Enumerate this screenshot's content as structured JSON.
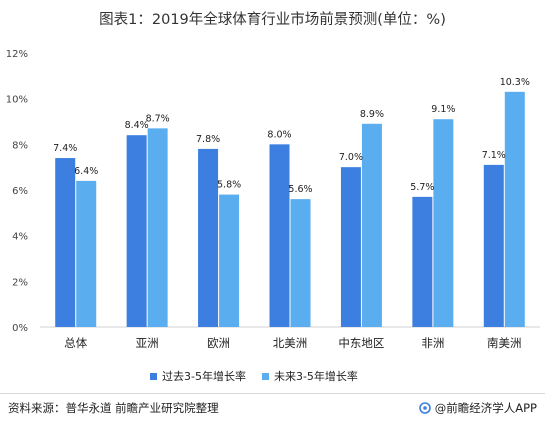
{
  "title": "图表1：2019年全球体育行业市场前景预测(单位：%)",
  "footer": {
    "source": "资料来源：普华永道 前瞻产业研究院整理",
    "brand": "@前瞻经济学人APP"
  },
  "colors": {
    "past": "#3d7fe0",
    "future": "#5aaef0"
  },
  "chart_data": {
    "type": "bar",
    "categories": [
      "总体",
      "亚洲",
      "欧洲",
      "北美洲",
      "中东地区",
      "非洲",
      "南美洲"
    ],
    "series": [
      {
        "name": "过去3-5年增长率",
        "values": [
          7.4,
          8.4,
          7.8,
          8.0,
          7.0,
          5.7,
          7.1
        ],
        "labels": [
          "7.4%",
          "8.4%",
          "7.8%",
          "8.0%",
          "7.0%",
          "5.7%",
          "7.1%"
        ]
      },
      {
        "name": "未来3-5年增长率",
        "values": [
          6.4,
          8.7,
          5.8,
          5.6,
          8.9,
          9.1,
          10.3
        ],
        "labels": [
          "6.4%",
          "8.7%",
          "5.8%",
          "5.6%",
          "8.9%",
          "9.1%",
          "10.3%"
        ]
      }
    ],
    "ylim": [
      0,
      12
    ],
    "yticks": [
      0,
      2,
      4,
      6,
      8,
      10,
      12
    ],
    "ytick_labels": [
      "0%",
      "2%",
      "4%",
      "6%",
      "8%",
      "10%",
      "12%"
    ],
    "grid": false,
    "legend_position": "bottom"
  }
}
